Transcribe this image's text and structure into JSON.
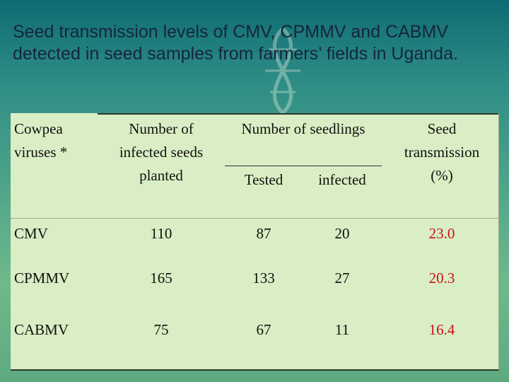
{
  "slide": {
    "title": "Seed transmission levels of CMV, CPMMV and CABMV detected in seed samples from farmers’ fields in Uganda."
  },
  "colors": {
    "background_top": "#0e6b73",
    "background_bottom": "#6fb98b",
    "table_fill": "#d9eec4",
    "rate_text": "#c8101a"
  },
  "table": {
    "headers": {
      "virus": [
        "Cowpea",
        "viruses *"
      ],
      "planted": [
        "Number of",
        "infected seeds",
        "planted"
      ],
      "seedlings": "Number of seedlings",
      "tested": "Tested",
      "infected": "infected",
      "rate": [
        "Seed",
        "transmission",
        "(%)"
      ]
    },
    "rows": [
      {
        "virus": "CMV",
        "planted": "110",
        "tested": "87",
        "infected": "20",
        "rate": "23.0"
      },
      {
        "virus": "CPMMV",
        "planted": "165",
        "tested": "133",
        "infected": "27",
        "rate": "20.3"
      },
      {
        "virus": "CABMV",
        "planted": "75",
        "tested": "67",
        "infected": "11",
        "rate": "16.4"
      }
    ]
  }
}
